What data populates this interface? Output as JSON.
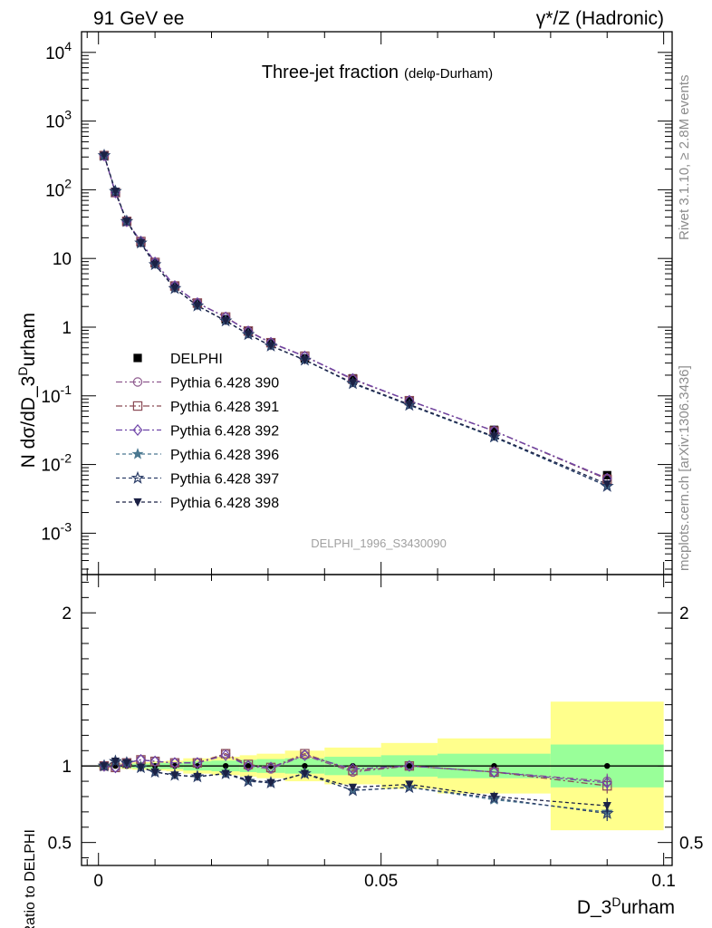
{
  "header": {
    "left": "91 GeV ee",
    "right": "γ*/Z (Hadronic)"
  },
  "side_text": {
    "top": "Rivet 3.1.10, ≥ 2.8M events",
    "bottom": "mcplots.cern.ch [arXiv:1306.3436]"
  },
  "watermark": "DELPHI_1996_S3430090",
  "chart_data": {
    "type": "line",
    "title": "Three-jet fraction",
    "title_suffix": "(delφ-Durham)",
    "xlabel": "D_3^Durham",
    "ylabel": "N dσ/dD_3^Durham",
    "ratio_ylabel": "Ratio to DELPHI",
    "xlim": [
      -0.003,
      0.1015
    ],
    "ylim": [
      0.00025,
      20000
    ],
    "yscale": "log",
    "ratio_ylim": [
      0.35,
      2.25
    ],
    "x_ticks": [
      0,
      0.05,
      0.1
    ],
    "x_tick_labels": [
      "0",
      "0.05",
      "0.1"
    ],
    "y_ticks": [
      0.001,
      0.01,
      0.1,
      1,
      10,
      100,
      1000,
      10000
    ],
    "y_tick_labels": [
      "10^-3",
      "10^-2",
      "10^-1",
      "1",
      "10",
      "10^2",
      "10^3",
      "10^4"
    ],
    "ratio_ticks": [
      0.5,
      1,
      2
    ],
    "ratio_tick_labels": [
      "0.5",
      "1",
      "2"
    ],
    "legend_position": "center-left",
    "x": [
      0.001,
      0.003,
      0.005,
      0.0075,
      0.01,
      0.0135,
      0.0175,
      0.0225,
      0.0265,
      0.0305,
      0.0365,
      0.045,
      0.055,
      0.07,
      0.09
    ],
    "data": {
      "name": "DELPHI",
      "values": [
        315,
        92,
        34,
        17,
        8.5,
        3.9,
        2.2,
        1.3,
        0.87,
        0.6,
        0.35,
        0.18,
        0.085,
        0.032,
        0.007
      ],
      "band_edges": [
        0,
        0.002,
        0.004,
        0.006,
        0.009,
        0.012,
        0.015,
        0.02,
        0.025,
        0.028,
        0.033,
        0.04,
        0.05,
        0.06,
        0.08,
        0.1
      ],
      "band_inner": [
        0.01,
        0.01,
        0.012,
        0.015,
        0.02,
        0.02,
        0.03,
        0.035,
        0.04,
        0.045,
        0.05,
        0.06,
        0.07,
        0.08,
        0.14
      ],
      "band_outer": [
        0.015,
        0.015,
        0.02,
        0.025,
        0.03,
        0.035,
        0.05,
        0.06,
        0.07,
        0.08,
        0.1,
        0.12,
        0.15,
        0.18,
        0.42
      ]
    },
    "series": [
      {
        "name": "Pythia 6.428 390",
        "color": "#8e5a8e",
        "marker": "circle-open",
        "dash": "7,3,2,3",
        "ratio": [
          1.0,
          0.99,
          1.02,
          1.04,
          1.03,
          1.02,
          1.02,
          1.08,
          1.0,
          0.98,
          1.07,
          0.96,
          1.0,
          0.96,
          0.9
        ]
      },
      {
        "name": "Pythia 6.428 391",
        "color": "#8a4a55",
        "marker": "square-open",
        "dash": "7,3,2,3",
        "ratio": [
          1.0,
          0.99,
          1.02,
          1.04,
          1.03,
          1.02,
          1.02,
          1.08,
          1.01,
          0.99,
          1.08,
          0.97,
          1.0,
          0.96,
          0.87
        ]
      },
      {
        "name": "Pythia 6.428 392",
        "color": "#6e44a8",
        "marker": "diamond-open",
        "dash": "7,3,2,3",
        "ratio": [
          1.0,
          0.99,
          1.02,
          1.04,
          1.03,
          1.02,
          1.02,
          1.07,
          1.0,
          0.99,
          1.07,
          0.98,
          1.0,
          0.96,
          0.89
        ]
      },
      {
        "name": "Pythia 6.428 396",
        "color": "#4a7890",
        "marker": "star-filled",
        "dash": "4,3",
        "ratio": [
          1.0,
          1.03,
          1.02,
          0.99,
          0.96,
          0.94,
          0.93,
          0.95,
          0.9,
          0.89,
          0.95,
          0.84,
          0.86,
          0.78,
          0.7
        ]
      },
      {
        "name": "Pythia 6.428 397",
        "color": "#2c3e68",
        "marker": "star-open",
        "dash": "4,3",
        "ratio": [
          1.0,
          1.03,
          1.02,
          0.99,
          0.96,
          0.94,
          0.93,
          0.95,
          0.9,
          0.89,
          0.95,
          0.84,
          0.86,
          0.79,
          0.69
        ]
      },
      {
        "name": "Pythia 6.428 398",
        "color": "#1b2145",
        "marker": "triangle-down-filled",
        "dash": "4,3",
        "ratio": [
          1.0,
          1.03,
          1.02,
          0.99,
          0.96,
          0.94,
          0.93,
          0.95,
          0.91,
          0.89,
          0.95,
          0.86,
          0.88,
          0.8,
          0.74
        ]
      }
    ]
  }
}
